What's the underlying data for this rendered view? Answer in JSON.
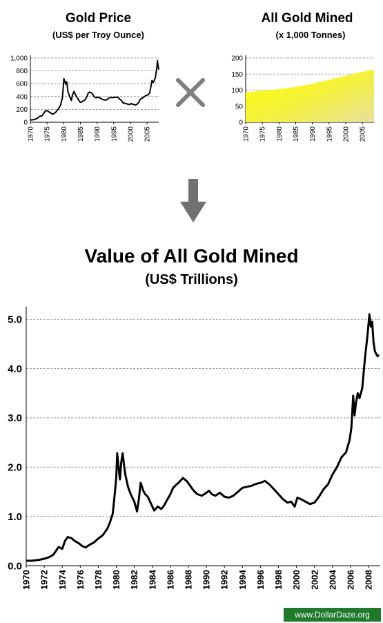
{
  "titles": {
    "price_title": "Gold Price",
    "price_subtitle": "(US$ per Troy Ounce)",
    "mined_title": "All Gold Mined",
    "mined_subtitle": "(x 1,000 Tonnes)",
    "main_title": "Value of All Gold Mined",
    "main_subtitle": "(US$ Trillions)"
  },
  "operator_icon": "multiply-x-icon",
  "arrow_icon": "down-arrow-icon",
  "watermark": "www.DollarDaze.org",
  "colors": {
    "line": "#000000",
    "area_top": "#ffff00",
    "area_bottom": "#e8e0a0",
    "operator": "#7f7f7f",
    "watermark_bg": "#1f7a2b"
  },
  "chart_data": [
    {
      "type": "line",
      "title": "Gold Price",
      "subtitle": "(US$ per Troy Ounce)",
      "xlabel": "",
      "ylabel": "",
      "xlim": [
        1970,
        2008.5
      ],
      "ylim": [
        0,
        1000
      ],
      "yticks": [
        0,
        200,
        400,
        600,
        800,
        1000
      ],
      "ytick_labels": [
        "0",
        "200",
        "400",
        "600",
        "800",
        "1,000"
      ],
      "xticks": [
        1970,
        1975,
        1980,
        1985,
        1990,
        1995,
        2000,
        2005
      ],
      "grid": "horizontal-dashed",
      "series": [
        {
          "x": [
            1970,
            1971,
            1972,
            1972.7,
            1973.5,
            1974.3,
            1974.9,
            1975.8,
            1976.7,
            1977.5,
            1978.3,
            1979.0,
            1979.6,
            1979.9,
            1980.05,
            1980.3,
            1980.6,
            1980.9,
            1981.3,
            1981.8,
            1982.3,
            1982.6,
            1983.1,
            1983.6,
            1984.2,
            1984.8,
            1985.2,
            1985.8,
            1986.4,
            1986.9,
            1987.4,
            1987.9,
            1988.5,
            1989.1,
            1989.7,
            1990.3,
            1990.8,
            1991.5,
            1992.2,
            1993.0,
            1993.6,
            1994.2,
            1995.0,
            1995.7,
            1996.2,
            1996.8,
            1997.3,
            1997.8,
            1998.4,
            1999.0,
            1999.7,
            2000.2,
            2000.8,
            2001.4,
            2001.9,
            2002.5,
            2003.0,
            2003.6,
            2004.2,
            2004.8,
            2005.3,
            2005.8,
            2006.1,
            2006.3,
            2006.5,
            2006.8,
            2007.1,
            2007.5,
            2007.8,
            2008.0,
            2008.1,
            2008.25,
            2008.4,
            2008.5
          ],
          "y": [
            35,
            40,
            58,
            90,
            100,
            160,
            185,
            155,
            125,
            150,
            200,
            260,
            380,
            560,
            680,
            640,
            590,
            630,
            470,
            400,
            340,
            420,
            480,
            420,
            370,
            320,
            310,
            330,
            350,
            390,
            460,
            470,
            450,
            400,
            380,
            390,
            380,
            360,
            345,
            350,
            380,
            385,
            385,
            390,
            390,
            360,
            340,
            300,
            295,
            285,
            275,
            290,
            280,
            270,
            275,
            310,
            360,
            375,
            400,
            420,
            425,
            460,
            540,
            600,
            650,
            620,
            640,
            700,
            800,
            880,
            960,
            900,
            860,
            820
          ]
        }
      ]
    },
    {
      "type": "area",
      "title": "All Gold Mined",
      "subtitle": "(x 1,000 Tonnes)",
      "xlabel": "",
      "ylabel": "",
      "xlim": [
        1970,
        2008.5
      ],
      "ylim": [
        0,
        200
      ],
      "yticks": [
        0,
        50,
        100,
        150,
        200
      ],
      "xticks": [
        1970,
        1975,
        1980,
        1985,
        1990,
        1995,
        2000,
        2005
      ],
      "grid": "horizontal-dashed",
      "series": [
        {
          "x": [
            1970,
            1975,
            1980,
            1985,
            1990,
            1995,
            2000,
            2005,
            2008.5
          ],
          "y": [
            93,
            98,
            103,
            110,
            120,
            132,
            145,
            157,
            165
          ]
        }
      ]
    },
    {
      "type": "line",
      "title": "Value of All Gold Mined",
      "subtitle": "(US$ Trillions)",
      "xlabel": "",
      "ylabel": "",
      "xlim": [
        1970,
        2009.3
      ],
      "ylim": [
        0,
        5.2
      ],
      "yticks": [
        0.0,
        1.0,
        2.0,
        3.0,
        4.0,
        5.0
      ],
      "ytick_labels": [
        "0.0",
        "1.0",
        "2.0",
        "3.0",
        "4.0",
        "5.0"
      ],
      "xticks": [
        1970,
        1972,
        1974,
        1976,
        1978,
        1980,
        1982,
        1984,
        1986,
        1988,
        1990,
        1992,
        1994,
        1996,
        1998,
        2000,
        2002,
        2004,
        2006,
        2008
      ],
      "grid": "horizontal-dashed",
      "series": [
        {
          "x": [
            1970,
            1970.5,
            1971,
            1971.5,
            1972,
            1972.5,
            1973,
            1973.3,
            1973.6,
            1974.0,
            1974.3,
            1974.6,
            1975.0,
            1975.4,
            1975.8,
            1976.2,
            1976.6,
            1977.0,
            1977.5,
            1978.0,
            1978.5,
            1979.0,
            1979.3,
            1979.6,
            1979.8,
            1980.0,
            1980.1,
            1980.25,
            1980.4,
            1980.55,
            1980.7,
            1980.85,
            1981.0,
            1981.3,
            1981.6,
            1982.0,
            1982.3,
            1982.5,
            1982.7,
            1983.0,
            1983.2,
            1983.5,
            1983.8,
            1984.2,
            1984.6,
            1985.0,
            1985.3,
            1985.6,
            1986.0,
            1986.3,
            1986.7,
            1987.0,
            1987.4,
            1987.8,
            1988.2,
            1988.6,
            1989.0,
            1989.5,
            1990.0,
            1990.3,
            1990.6,
            1991.0,
            1991.5,
            1992.0,
            1992.5,
            1993.0,
            1993.5,
            1994.0,
            1994.5,
            1995.0,
            1995.5,
            1996.0,
            1996.5,
            1997.0,
            1997.5,
            1998.0,
            1998.5,
            1999.0,
            1999.4,
            1999.8,
            2000.1,
            2000.5,
            2001.0,
            2001.5,
            2002.0,
            2002.5,
            2003.0,
            2003.5,
            2004.0,
            2004.5,
            2005.0,
            2005.5,
            2005.9,
            2006.1,
            2006.3,
            2006.45,
            2006.6,
            2006.8,
            2007.0,
            2007.3,
            2007.6,
            2007.9,
            2008.1,
            2008.25,
            2008.4,
            2008.55,
            2008.7,
            2008.85,
            2009.0,
            2009.15
          ],
          "y": [
            0.1,
            0.1,
            0.11,
            0.12,
            0.14,
            0.17,
            0.22,
            0.3,
            0.38,
            0.34,
            0.5,
            0.58,
            0.56,
            0.5,
            0.46,
            0.4,
            0.37,
            0.42,
            0.47,
            0.55,
            0.62,
            0.75,
            0.88,
            1.05,
            1.4,
            1.8,
            2.28,
            2.0,
            1.75,
            2.1,
            2.28,
            2.05,
            1.85,
            1.6,
            1.45,
            1.3,
            1.1,
            1.35,
            1.68,
            1.52,
            1.45,
            1.4,
            1.28,
            1.12,
            1.2,
            1.15,
            1.22,
            1.32,
            1.45,
            1.58,
            1.65,
            1.7,
            1.78,
            1.72,
            1.62,
            1.52,
            1.45,
            1.42,
            1.48,
            1.52,
            1.45,
            1.42,
            1.48,
            1.4,
            1.38,
            1.42,
            1.5,
            1.58,
            1.6,
            1.62,
            1.66,
            1.68,
            1.72,
            1.65,
            1.55,
            1.45,
            1.35,
            1.28,
            1.3,
            1.2,
            1.38,
            1.35,
            1.3,
            1.25,
            1.28,
            1.4,
            1.55,
            1.65,
            1.85,
            2.0,
            2.2,
            2.3,
            2.55,
            2.8,
            3.45,
            3.05,
            3.3,
            3.5,
            3.4,
            3.6,
            4.2,
            4.7,
            5.1,
            4.85,
            4.95,
            4.55,
            4.35,
            4.3,
            4.25,
            4.28
          ]
        }
      ]
    }
  ]
}
